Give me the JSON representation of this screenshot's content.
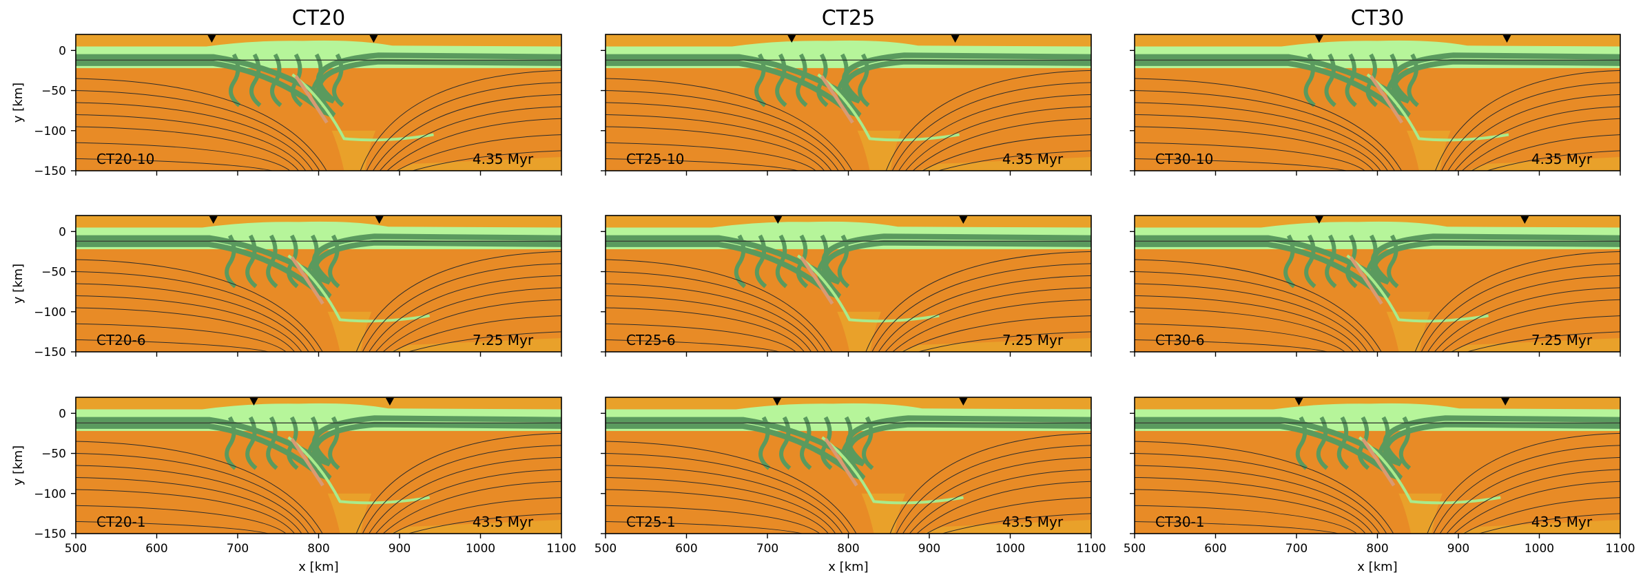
{
  "figure": {
    "columns": [
      "CT20",
      "CT25",
      "CT30"
    ],
    "xlabel": "x [km]",
    "ylabel": "y [km]",
    "xticks": [
      "500",
      "600",
      "700",
      "800",
      "900",
      "1000",
      "1100"
    ],
    "yticks": [
      "0",
      "−50",
      "−100",
      "−150"
    ]
  },
  "colors": {
    "sky_light_green": "#b6f59a",
    "dark_green": "#5a9a5e",
    "crust_green": "#a9eb8c",
    "mantle_orange": "#e88b26",
    "deep_orange": "#e9a12a",
    "salmon": "#d99a73",
    "contour": "#2b2b2b"
  },
  "chart_data": [
    {
      "type": "heatmap",
      "id": "CT20-10",
      "label": "CT20-10",
      "time": "4.35 Myr",
      "xlim": [
        500,
        1100
      ],
      "ylim": [
        -150,
        20
      ],
      "trench_markers_x": [
        668,
        868
      ],
      "slab_tip_x": 840
    },
    {
      "type": "heatmap",
      "id": "CT25-10",
      "label": "CT25-10",
      "time": "4.35 Myr",
      "xlim": [
        500,
        1100
      ],
      "ylim": [
        -150,
        20
      ],
      "trench_markers_x": [
        730,
        932
      ],
      "slab_tip_x": 835
    },
    {
      "type": "heatmap",
      "id": "CT30-10",
      "label": "CT30-10",
      "time": "4.35 Myr",
      "xlim": [
        500,
        1100
      ],
      "ylim": [
        -150,
        20
      ],
      "trench_markers_x": [
        728,
        960
      ],
      "slab_tip_x": 860
    },
    {
      "type": "heatmap",
      "id": "CT20-6",
      "label": "CT20-6",
      "time": "7.25 Myr",
      "xlim": [
        500,
        1100
      ],
      "ylim": [
        -150,
        20
      ],
      "trench_markers_x": [
        670,
        875
      ],
      "slab_tip_x": 835
    },
    {
      "type": "heatmap",
      "id": "CT25-6",
      "label": "CT25-6",
      "time": "7.25 Myr",
      "xlim": [
        500,
        1100
      ],
      "ylim": [
        -150,
        20
      ],
      "trench_markers_x": [
        713,
        942
      ],
      "slab_tip_x": 810
    },
    {
      "type": "heatmap",
      "id": "CT30-6",
      "label": "CT30-6",
      "time": "7.25 Myr",
      "xlim": [
        500,
        1100
      ],
      "ylim": [
        -150,
        20
      ],
      "trench_markers_x": [
        728,
        982
      ],
      "slab_tip_x": 835
    },
    {
      "type": "heatmap",
      "id": "CT20-1",
      "label": "CT20-1",
      "time": "43.5 Myr",
      "xlim": [
        500,
        1100
      ],
      "ylim": [
        -150,
        20
      ],
      "trench_markers_x": [
        720,
        888
      ],
      "slab_tip_x": 835
    },
    {
      "type": "heatmap",
      "id": "CT25-1",
      "label": "CT25-1",
      "time": "43.5 Myr",
      "xlim": [
        500,
        1100
      ],
      "ylim": [
        -150,
        20
      ],
      "trench_markers_x": [
        712,
        942
      ],
      "slab_tip_x": 840
    },
    {
      "type": "heatmap",
      "id": "CT30-1",
      "label": "CT30-1",
      "time": "43.5 Myr",
      "xlim": [
        500,
        1100
      ],
      "ylim": [
        -150,
        20
      ],
      "trench_markers_x": [
        703,
        958
      ],
      "slab_tip_x": 850
    }
  ]
}
